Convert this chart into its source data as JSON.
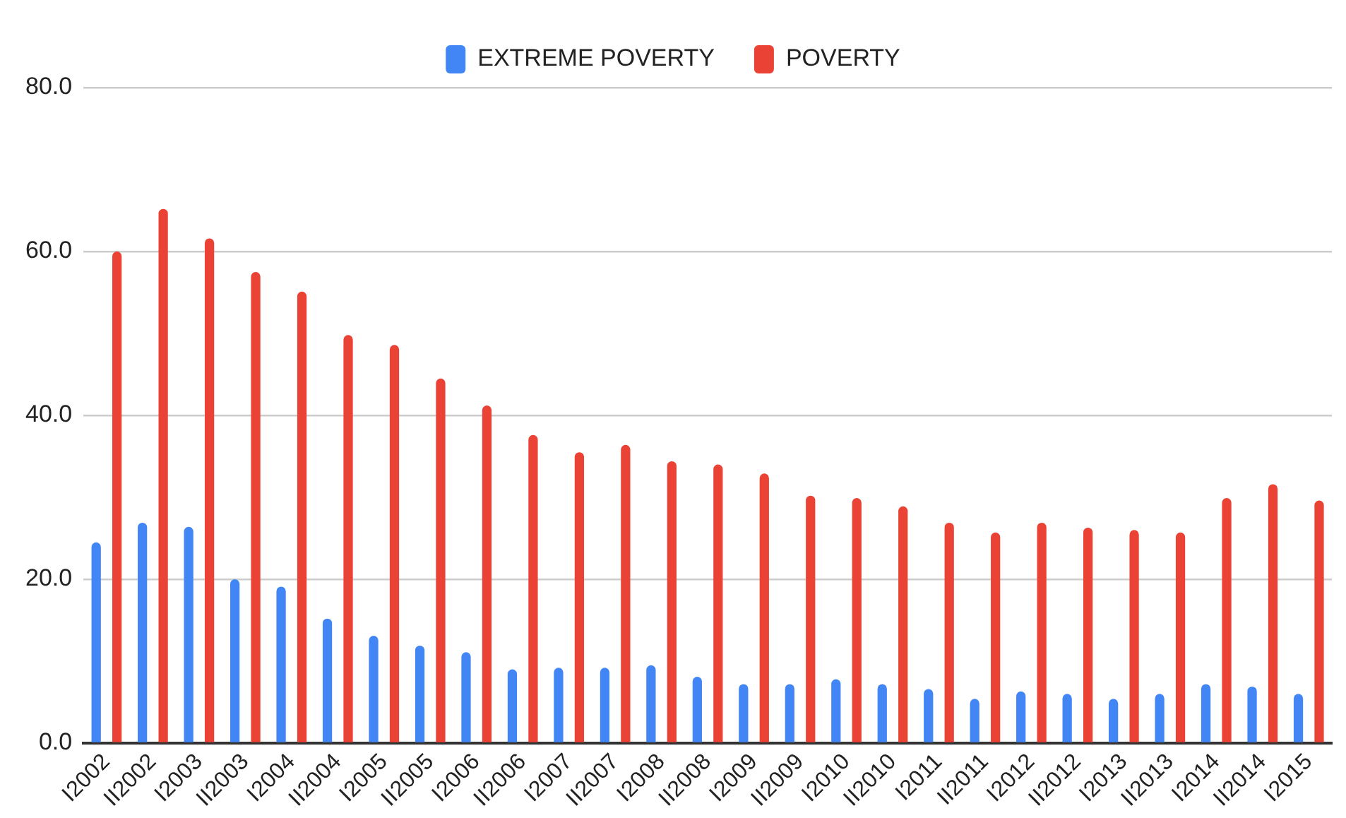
{
  "chart_data": {
    "type": "bar",
    "categories": [
      "I2002",
      "II2002",
      "I2003",
      "II2003",
      "I2004",
      "II2004",
      "I2005",
      "II2005",
      "I2006",
      "II2006",
      "I2007",
      "II2007",
      "I2008",
      "II2008",
      "I2009",
      "II2009",
      "I2010",
      "II2010",
      "I2011",
      "II2011",
      "I2012",
      "II2012",
      "I2013",
      "II2013",
      "I2014",
      "II2014",
      "I2015"
    ],
    "series": [
      {
        "name": "EXTREME POVERTY",
        "color": "#4285f4",
        "values": [
          24.5,
          26.9,
          26.4,
          20.0,
          19.1,
          15.2,
          13.1,
          11.9,
          11.1,
          9.0,
          9.2,
          9.2,
          9.5,
          8.1,
          7.2,
          7.2,
          7.8,
          7.2,
          6.6,
          5.4,
          6.3,
          6.0,
          5.4,
          6.0,
          7.2,
          6.9,
          6.0
        ]
      },
      {
        "name": "POVERTY",
        "color": "#ea4335",
        "values": [
          60.0,
          65.2,
          61.6,
          57.5,
          55.1,
          49.8,
          48.6,
          44.5,
          41.2,
          37.6,
          35.5,
          36.4,
          34.4,
          34.0,
          32.9,
          30.2,
          29.9,
          28.9,
          26.9,
          25.7,
          26.9,
          26.3,
          26.0,
          25.7,
          29.9,
          31.6,
          29.6
        ]
      }
    ],
    "ylim": [
      0,
      80
    ],
    "yticks": [
      {
        "value": 0,
        "label": "0.0"
      },
      {
        "value": 20,
        "label": "20.0"
      },
      {
        "value": 40,
        "label": "40.0"
      },
      {
        "value": 60,
        "label": "60.0"
      },
      {
        "value": 80,
        "label": "80.0"
      }
    ],
    "grid": "y",
    "legend": "top"
  }
}
